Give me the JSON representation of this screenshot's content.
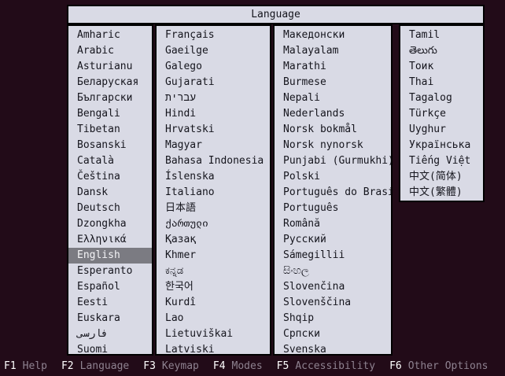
{
  "title": "Language",
  "selected_language": "English",
  "columns": [
    [
      "Amharic",
      "Arabic",
      "Asturianu",
      "Беларуская",
      "Български",
      "Bengali",
      "Tibetan",
      "Bosanski",
      "Català",
      "Čeština",
      "Dansk",
      "Deutsch",
      "Dzongkha",
      "Ελληνικά",
      "English",
      "Esperanto",
      "Español",
      "Eesti",
      "Euskara",
      "فارسی",
      "Suomi"
    ],
    [
      "Français",
      "Gaeilge",
      "Galego",
      "Gujarati",
      "עברית",
      "Hindi",
      "Hrvatski",
      "Magyar",
      "Bahasa Indonesia",
      "Íslenska",
      "Italiano",
      "日本語",
      "ქართული",
      "Қазақ",
      "Khmer",
      "ಕನ್ನಡ",
      "한국어",
      "Kurdî",
      "Lao",
      "Lietuviškai",
      "Latviski"
    ],
    [
      "Македонски",
      "Malayalam",
      "Marathi",
      "Burmese",
      "Nepali",
      "Nederlands",
      "Norsk bokmål",
      "Norsk nynorsk",
      "Punjabi (Gurmukhi)",
      "Polski",
      "Português do Brasil",
      "Português",
      "Română",
      "Русский",
      "Sámegillii",
      "සිංහල",
      "Slovenčina",
      "Slovenščina",
      "Shqip",
      "Српски",
      "Svenska"
    ],
    [
      "Tamil",
      "తెలుగు",
      "Тоик",
      "Thai",
      "Tagalog",
      "Türkçe",
      "Uyghur",
      "Українська",
      "Tiếng Việt",
      "中文(简体)",
      "中文(繁體)"
    ]
  ],
  "function_keys": [
    {
      "key": "F1",
      "label": "Help"
    },
    {
      "key": "F2",
      "label": "Language"
    },
    {
      "key": "F3",
      "label": "Keymap"
    },
    {
      "key": "F4",
      "label": "Modes"
    },
    {
      "key": "F5",
      "label": "Accessibility"
    },
    {
      "key": "F6",
      "label": "Other Options"
    }
  ],
  "colors": {
    "background": "#220b18",
    "panel": "#d9dae5",
    "panel_text": "#15151d",
    "highlight_bg": "#7b7b82",
    "highlight_text": "#f4f4f7",
    "fkey_text": "#ffffff",
    "flabel_text": "#8e8290"
  }
}
